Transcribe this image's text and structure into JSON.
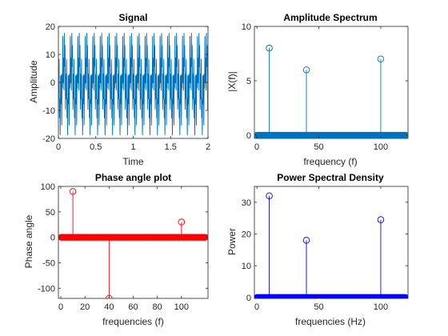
{
  "chart_data": [
    {
      "type": "line",
      "title": "Signal",
      "xlabel": "Time",
      "ylabel": "Amplitude",
      "xlim": [
        0,
        2
      ],
      "ylim": [
        -20,
        20
      ],
      "xticks": [
        0,
        0.5,
        1,
        1.5,
        2
      ],
      "yticks": [
        -20,
        -10,
        0,
        10,
        20
      ],
      "grid": false,
      "color": "#0072BD",
      "description_values": {
        "x_range": [
          0,
          2
        ],
        "approx_peak": 18,
        "approx_trough": -18
      }
    },
    {
      "type": "stem",
      "title": "Amplitude Spectrum",
      "xlabel": "frequency (f)",
      "ylabel": "|X(f)|",
      "xlim": [
        -2,
        122
      ],
      "ylim": [
        -0.3,
        10
      ],
      "xticks": [
        0,
        50,
        100
      ],
      "yticks": [
        0,
        5,
        10
      ],
      "grid": false,
      "color": "#0072BD",
      "x_start": 0,
      "x_end": 120,
      "x_step": 0.5,
      "peaks": [
        {
          "x": 10,
          "y": 8
        },
        {
          "x": 40,
          "y": 6
        },
        {
          "x": 100,
          "y": 7
        }
      ]
    },
    {
      "type": "stem",
      "title": "Phase angle plot",
      "xlabel": "frequencies (f)",
      "ylabel": "Phase angle",
      "xlim": [
        -2,
        122
      ],
      "ylim": [
        -120,
        100
      ],
      "xticks": [
        0,
        20,
        40,
        60,
        80,
        100
      ],
      "yticks": [
        -100,
        -50,
        0,
        50,
        100
      ],
      "grid": false,
      "color": "#FF0000",
      "x_start": 0,
      "x_end": 120,
      "x_step": 0.5,
      "peaks": [
        {
          "x": 10,
          "y": 90
        },
        {
          "x": 40,
          "y": -120
        },
        {
          "x": 100,
          "y": 30
        }
      ]
    },
    {
      "type": "stem",
      "title": "Power Spectral Density",
      "xlabel": "frequencies (Hz)",
      "ylabel": "Power",
      "xlim": [
        -2,
        122
      ],
      "ylim": [
        -0.3,
        35
      ],
      "xticks": [
        0,
        50,
        100
      ],
      "yticks": [
        0,
        10,
        20,
        30
      ],
      "grid": false,
      "color": "#0000FF",
      "x_start": 0,
      "x_end": 120,
      "x_step": 0.5,
      "peaks": [
        {
          "x": 10,
          "y": 32
        },
        {
          "x": 40,
          "y": 18
        },
        {
          "x": 100,
          "y": 24.5
        }
      ]
    }
  ]
}
